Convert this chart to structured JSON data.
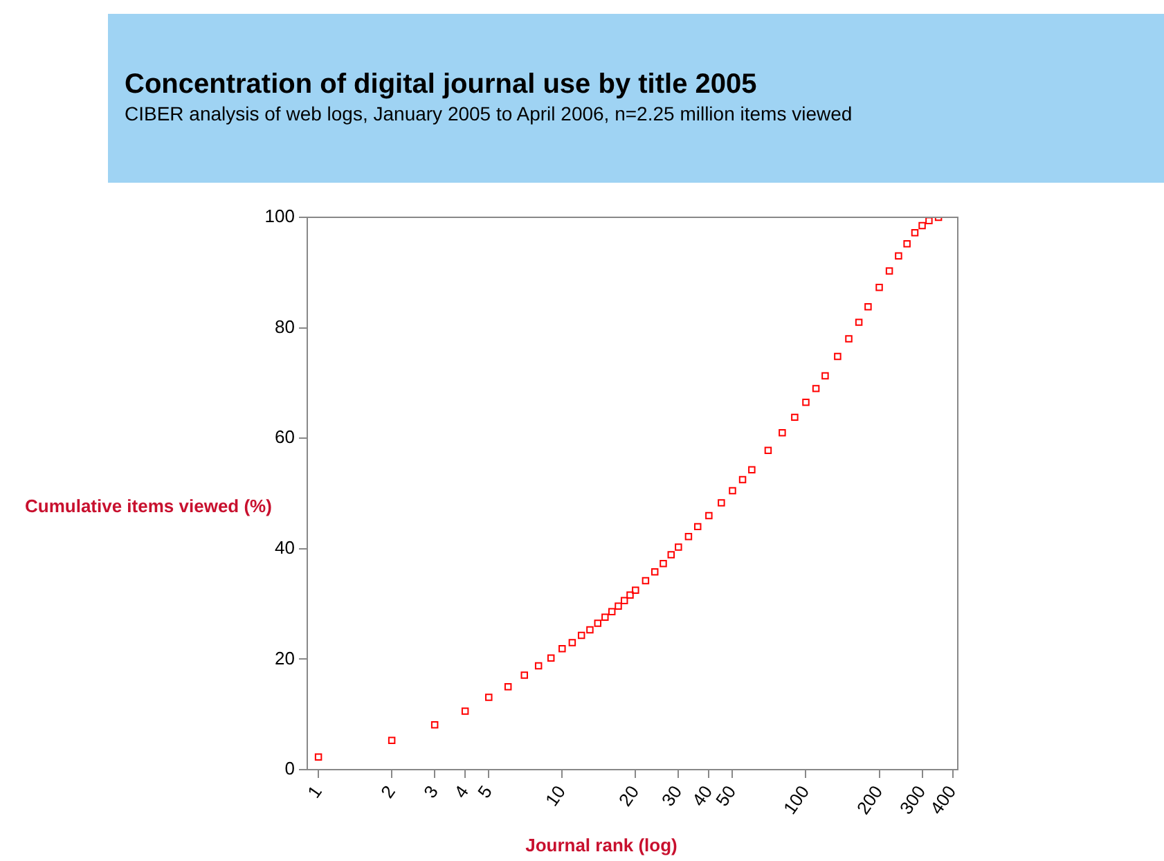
{
  "chart_data": {
    "type": "scatter",
    "title": "Concentration of digital journal use by title 2005",
    "subtitle": "CIBER analysis of web logs, January 2005 to April 2006, n=2.25 million items viewed",
    "xlabel": "Journal rank (log)",
    "ylabel": "Cumulative items viewed (%)",
    "log": "x",
    "xlim": [
      0.9,
      420
    ],
    "xticks": [
      1,
      2,
      3,
      4,
      5,
      10,
      20,
      30,
      40,
      50,
      100,
      200,
      300,
      400
    ],
    "ylim": [
      0,
      100
    ],
    "yticks": [
      0,
      20,
      40,
      60,
      80,
      100
    ],
    "grid": false,
    "legend": false,
    "marker": "square",
    "series": [
      {
        "color": "#ff0000",
        "x": [
          1,
          2,
          3,
          4,
          5,
          6,
          7,
          8,
          9,
          10,
          11,
          12,
          13,
          14,
          15,
          16,
          17,
          18,
          19,
          20,
          22,
          24,
          26,
          28,
          30,
          33,
          36,
          40,
          45,
          50,
          55,
          60,
          70,
          80,
          90,
          100,
          110,
          120,
          135,
          150,
          165,
          180,
          200,
          220,
          240,
          260,
          280,
          300,
          320,
          350
        ],
        "values": [
          2.3,
          5.3,
          8.1,
          10.6,
          13.1,
          15,
          17.1,
          18.8,
          20.2,
          21.9,
          23,
          24.3,
          25.3,
          26.5,
          27.6,
          28.6,
          29.6,
          30.6,
          31.6,
          32.5,
          34.2,
          35.8,
          37.3,
          38.9,
          40.3,
          42.2,
          44,
          46,
          48.3,
          50.5,
          52.5,
          54.3,
          57.8,
          61,
          63.8,
          66.5,
          69,
          71.3,
          74.8,
          78,
          81,
          83.8,
          87.3,
          90.3,
          93,
          95.2,
          97.2,
          98.5,
          99.4,
          100
        ]
      }
    ]
  }
}
